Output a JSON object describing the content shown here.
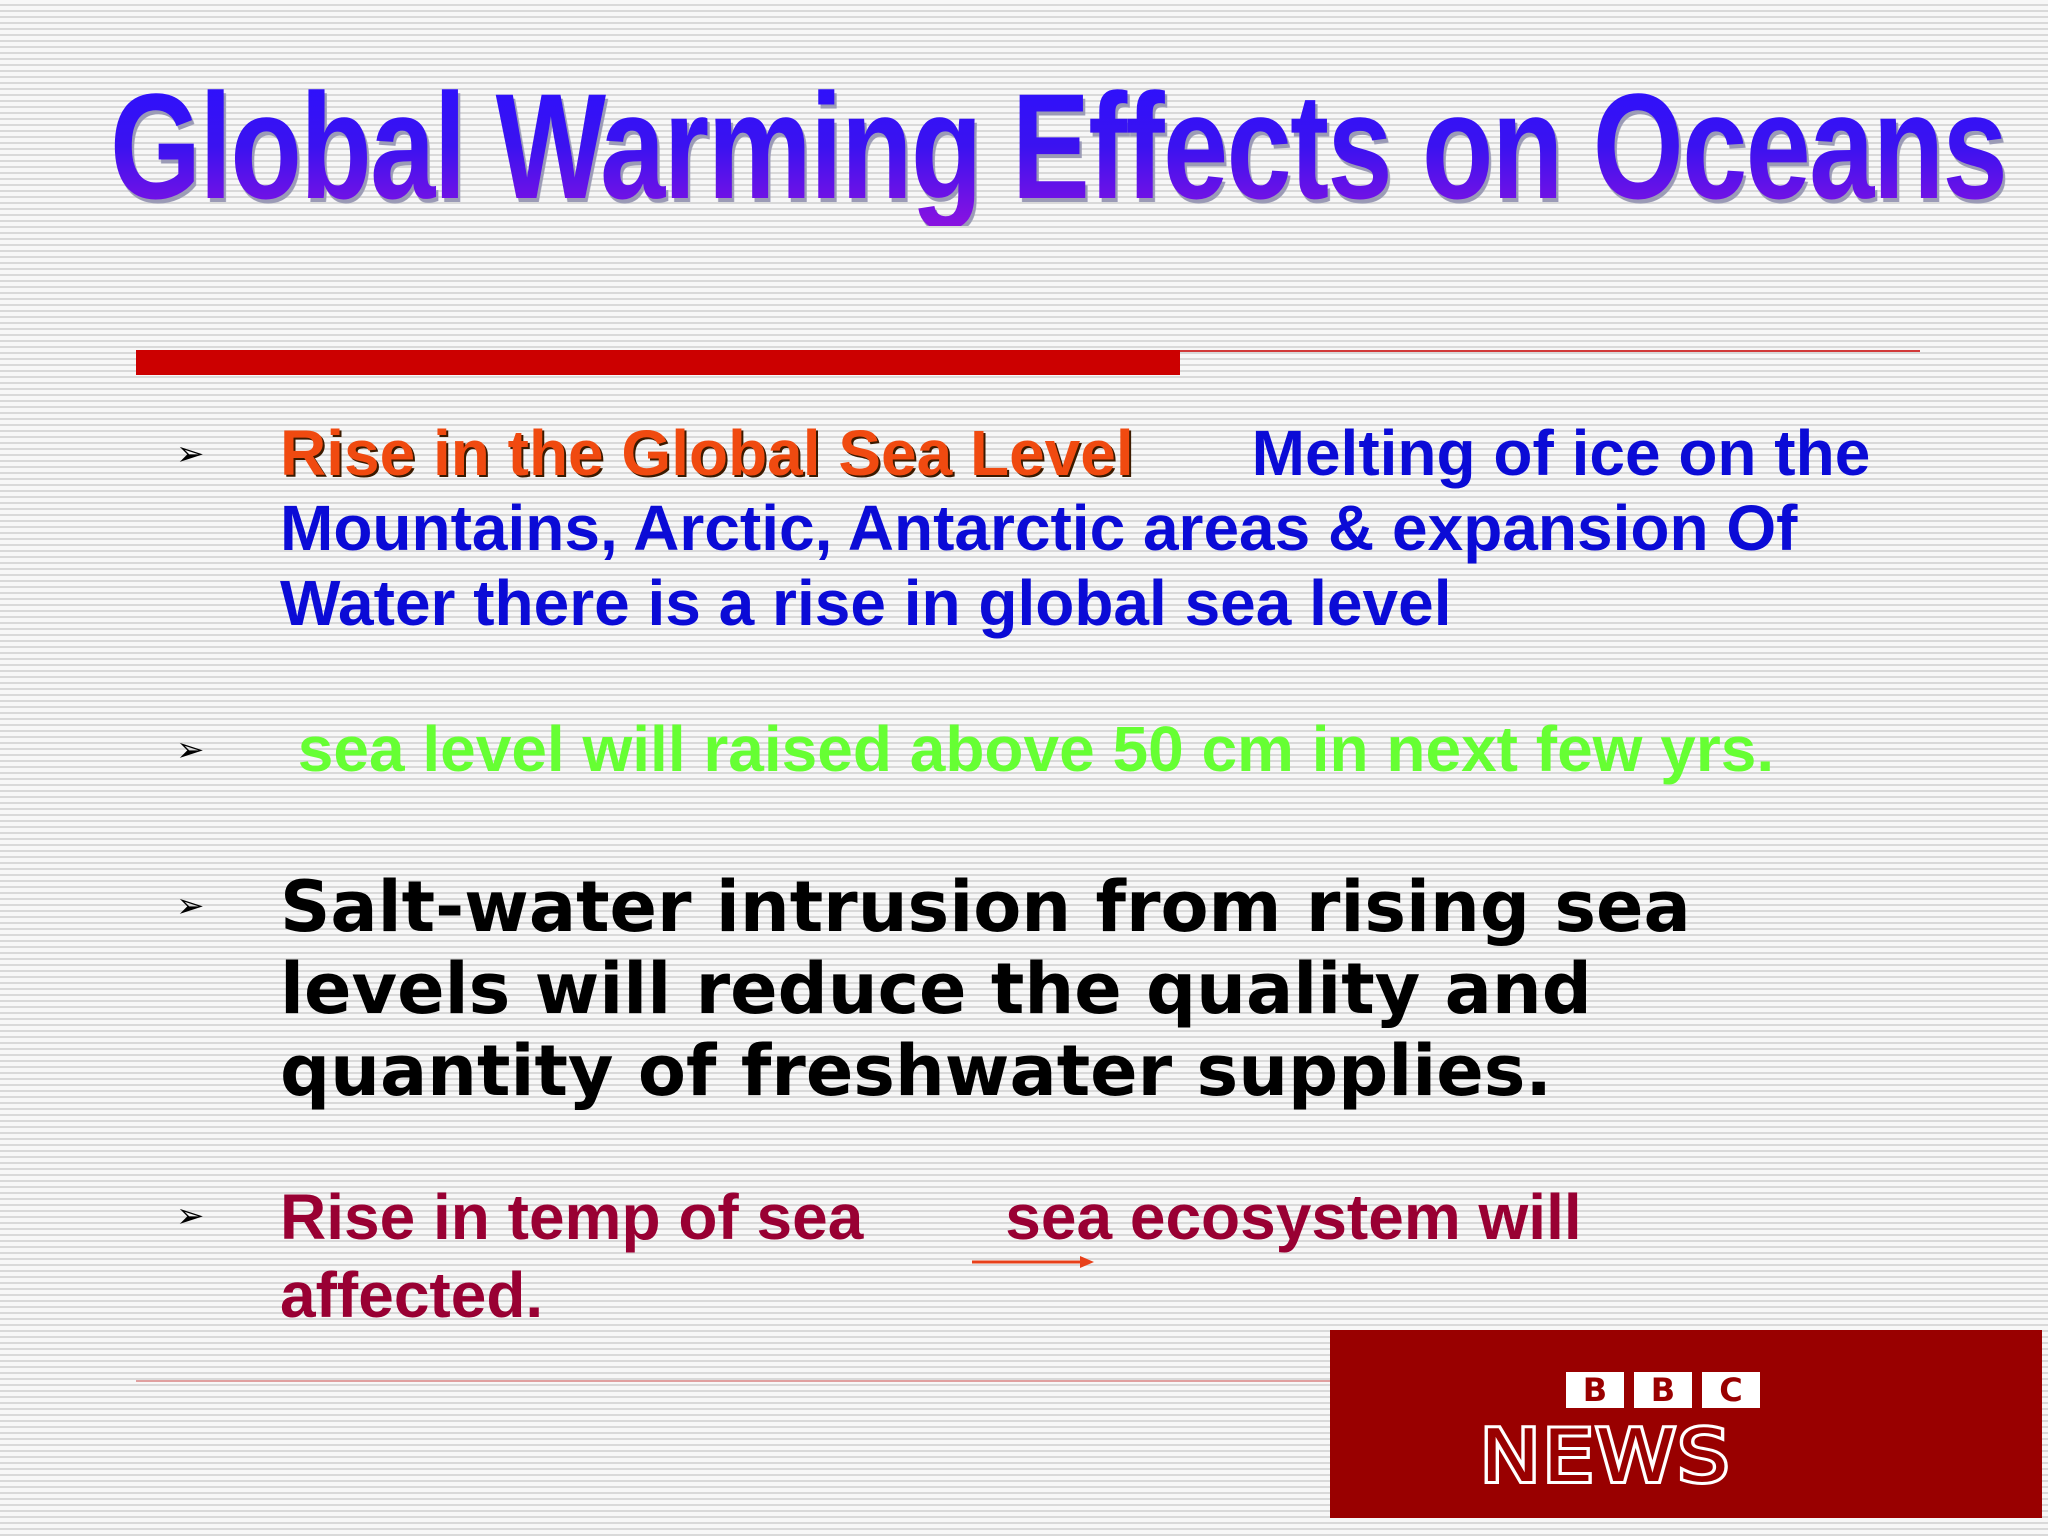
{
  "slide": {
    "title": "Global Warming Effects on Oceans"
  },
  "bullets": [
    {
      "heading": "Rise in the Global Sea Level",
      "text": "Melting of ice on the Mountains, Arctic, Antarctic areas & expansion Of Water there is a rise in global sea level"
    },
    {
      "text": " sea level will raised above 50 cm in next few yrs."
    },
    {
      "text": "Salt-water intrusion from rising sea levels will reduce the quality and quantity of freshwater supplies."
    },
    {
      "cause": "Rise in temp of sea",
      "effect": "sea ecosystem will",
      "effect_continued": "affected."
    }
  ],
  "logo": {
    "letters": [
      "B",
      "B",
      "C"
    ],
    "word": "NEWS"
  },
  "colors": {
    "title_blue": "#2a10ff",
    "title_purple": "#8a12e0",
    "heading_orange": "#f04a10",
    "body_blue": "#0b0bd6",
    "highlight_green": "#66ff33",
    "body_black": "#000000",
    "maroon": "#990033",
    "rule_red": "#cc0000",
    "logo_red": "#990000"
  },
  "icons": {
    "bullet": "arrowhead-bullet-icon",
    "connector": "right-arrow-icon"
  }
}
